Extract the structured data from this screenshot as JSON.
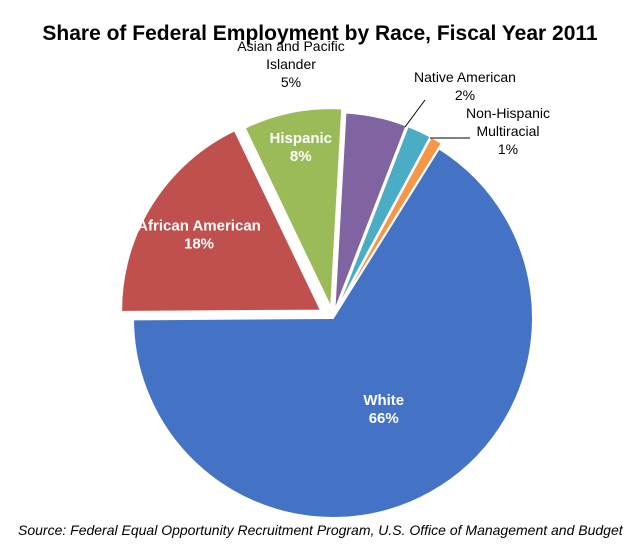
{
  "chart_data": {
    "type": "pie",
    "title": "Share of Federal Employment by Race, Fiscal Year 2011",
    "source": "Source: Federal Equal Opportunity Recruitment Program, U.S. Office of Management and Budget",
    "slices": [
      {
        "name": "White",
        "lines": [
          "White"
        ],
        "value": 66,
        "label": "66%",
        "color": "#4472C4"
      },
      {
        "name": "African American",
        "lines": [
          "African American"
        ],
        "value": 18,
        "label": "18%",
        "color": "#C0504D"
      },
      {
        "name": "Hispanic",
        "lines": [
          "Hispanic"
        ],
        "value": 8,
        "label": "8%",
        "color": "#9BBB59"
      },
      {
        "name": "Asian and Pacific Islander",
        "lines": [
          "Asian and Pacific",
          "Islander"
        ],
        "value": 5,
        "label": "5%",
        "color": "#8064A2"
      },
      {
        "name": "Native American",
        "lines": [
          "Native American"
        ],
        "value": 2,
        "label": "2%",
        "color": "#4BACC6"
      },
      {
        "name": "Non-Hispanic Multiracial",
        "lines": [
          "Non-Hispanic",
          "Multiracial"
        ],
        "value": 1,
        "label": "1%",
        "color": "#F79646"
      }
    ]
  }
}
